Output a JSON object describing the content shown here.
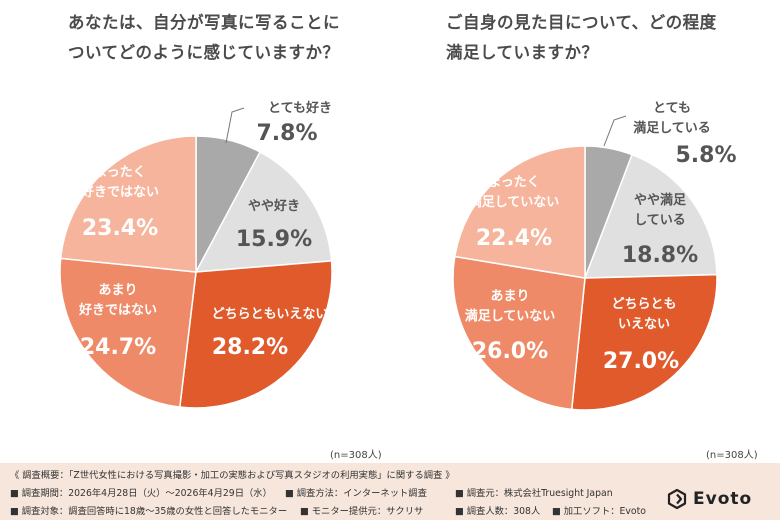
{
  "chart_data": [
    {
      "type": "pie",
      "title": "あなたは、自分が写真に写ることについてどのように感じていますか？",
      "title_lines": [
        "あなたは、自分が写真に写ることに",
        "ついてどのように感じていますか？"
      ],
      "n_label": "(n=308人)",
      "slices": [
        {
          "label": "とても好き",
          "label_lines": [
            "とても好き"
          ],
          "value": 7.8,
          "value_text": "7.8%",
          "color": "#a9a9a9"
        },
        {
          "label": "やや好き",
          "label_lines": [
            "やや好き"
          ],
          "value": 15.9,
          "value_text": "15.9%",
          "color": "#e0e0e0"
        },
        {
          "label": "どちらともいえない",
          "label_lines": [
            "どちらともいえない"
          ],
          "value": 28.2,
          "value_text": "28.2%",
          "color": "#e05a2b"
        },
        {
          "label": "あまり好きではない",
          "label_lines": [
            "あまり",
            "好きではない"
          ],
          "value": 24.7,
          "value_text": "24.7%",
          "color": "#ef8a68"
        },
        {
          "label": "まったく好きではない",
          "label_lines": [
            "まったく",
            "好きではない"
          ],
          "value": 23.4,
          "value_text": "23.4%",
          "color": "#f6b49c"
        }
      ]
    },
    {
      "type": "pie",
      "title": "ご自身の見た目について、どの程度満足していますか？",
      "title_lines": [
        "ご自身の見た目について、どの程度",
        "満足していますか？"
      ],
      "n_label": "(n=308人)",
      "slices": [
        {
          "label": "とても満足している",
          "label_lines": [
            "とても",
            "満足している"
          ],
          "value": 5.8,
          "value_text": "5.8%",
          "color": "#a9a9a9"
        },
        {
          "label": "やや満足している",
          "label_lines": [
            "やや満足",
            "している"
          ],
          "value": 18.8,
          "value_text": "18.8%",
          "color": "#e0e0e0"
        },
        {
          "label": "どちらともいえない",
          "label_lines": [
            "どちらとも",
            "いえない"
          ],
          "value": 27.0,
          "value_text": "27.0%",
          "color": "#e05a2b"
        },
        {
          "label": "あまり満足していない",
          "label_lines": [
            "あまり",
            "満足していない"
          ],
          "value": 26.0,
          "value_text": "26.0%",
          "color": "#ef8a68"
        },
        {
          "label": "まったく満足していない",
          "label_lines": [
            "まったく",
            "満足していない"
          ],
          "value": 22.4,
          "value_text": "22.4%",
          "color": "#f6b49c"
        }
      ]
    }
  ],
  "footer": {
    "overview": "《 調査概要：「Z世代女性における写真撮影・加工の実態および写真スタジオの利用実態」に関する調査 》",
    "rows": [
      [
        "■ 調査期間：2026年4月28日（火）〜2026年4月29日（水）",
        "■ 調査方法：インターネット調査",
        "■ 調査元：株式会社Truesight Japan"
      ],
      [
        "■ 調査対象：調査回答時に18歳〜35歳の女性と回答したモニター",
        "■ モニター提供元：サクリサ",
        "■ 調査人数：308人",
        "■ 加工ソフト：Evoto"
      ]
    ]
  },
  "logo": {
    "text": "Evoto",
    "icon": "evoto-logo-icon"
  }
}
